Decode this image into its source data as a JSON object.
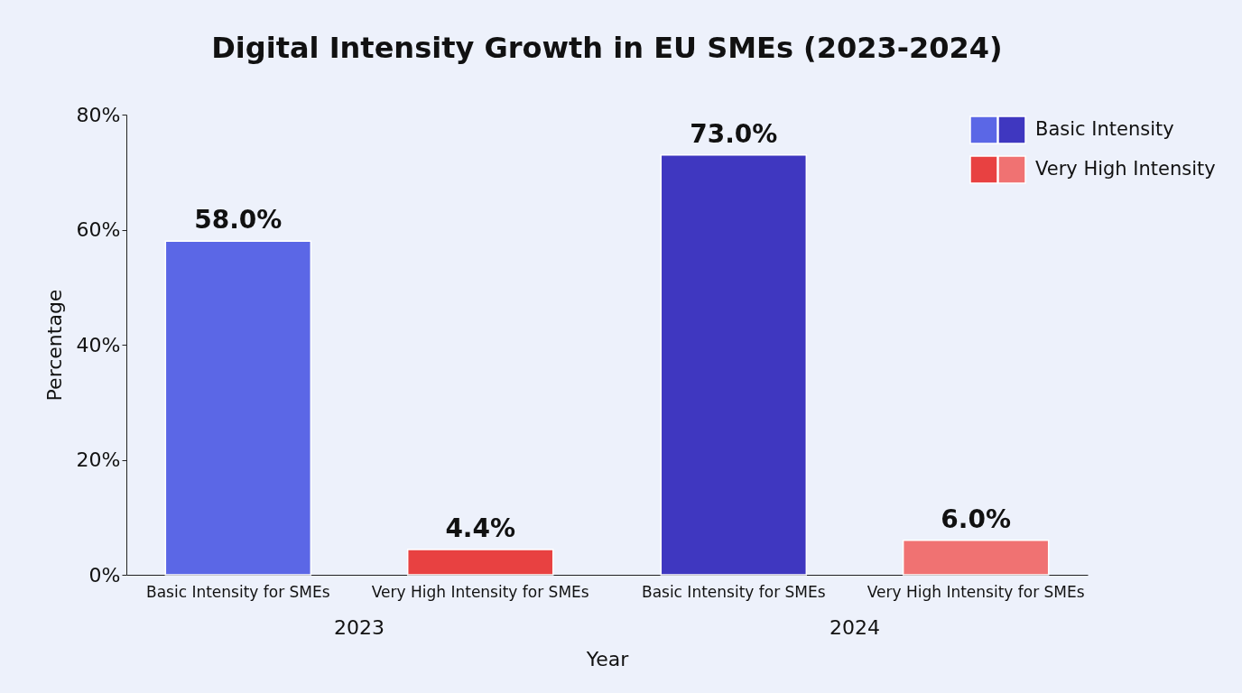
{
  "chart_data": {
    "type": "bar",
    "title": "Digital Intensity Growth in EU SMEs (2023-2024)",
    "xlabel": "Year",
    "ylabel": "Percentage",
    "categories": [
      "2023",
      "2024"
    ],
    "series": [
      {
        "name": "Basic Intensity",
        "colors": [
          "#5b67e6",
          "#3f37c0"
        ],
        "values": [
          58.0,
          73.0
        ],
        "value_labels": [
          "58.0%",
          "73.0%"
        ]
      },
      {
        "name": "Very High Intensity",
        "colors": [
          "#e84141",
          "#f07272"
        ],
        "values": [
          4.4,
          6.0
        ],
        "value_labels": [
          "4.4%",
          "6.0%"
        ]
      }
    ],
    "annotations": [
      "Basic Intensity for SMEs",
      "Very High Intensity for SMEs",
      "Basic Intensity for SMEs",
      "Very High Intensity for SMEs"
    ],
    "ylim": [
      0,
      80
    ],
    "yticks": [
      {
        "value": 0,
        "label": "0%"
      },
      {
        "value": 20,
        "label": "20%"
      },
      {
        "value": 40,
        "label": "40%"
      },
      {
        "value": 60,
        "label": "60%"
      },
      {
        "value": 80,
        "label": "80%"
      }
    ],
    "grid": false,
    "legend": "top right"
  }
}
